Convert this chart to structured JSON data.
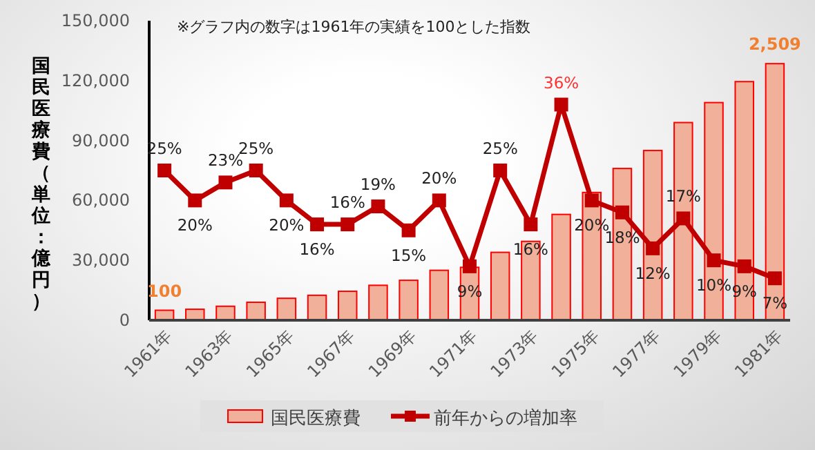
{
  "chart_data": {
    "type": "bar",
    "ylabel": "国民医療費（単位：億円）",
    "categories": [
      "1961年",
      null,
      "1963年",
      null,
      "1965年",
      null,
      "1967年",
      null,
      "1969年",
      null,
      "1971年",
      null,
      "1973年",
      null,
      "1975年",
      null,
      "1977年",
      null,
      "1979年",
      null,
      "1981年"
    ],
    "series": [
      {
        "name": "国民医療費",
        "color": "#f0b09a",
        "values": [
          5000,
          5500,
          7000,
          9000,
          11000,
          12500,
          14500,
          17500,
          20000,
          25000,
          26500,
          34000,
          39500,
          53000,
          64000,
          76000,
          85000,
          99000,
          109000,
          119500,
          128500
        ]
      },
      {
        "name": "前年からの増加率",
        "type": "line",
        "axis": "y2",
        "color": "#c00000",
        "values": [
          25,
          20,
          23,
          25,
          20,
          16,
          16,
          19,
          15,
          20,
          9,
          25,
          16,
          36,
          20,
          18,
          12,
          17,
          10,
          9,
          7
        ],
        "value_labels": [
          "25%",
          "20%",
          "23%",
          "25%",
          "20%",
          "16%",
          "16%",
          "19%",
          "15%",
          "20%",
          "9%",
          "25%",
          "16%",
          "36%",
          "20%",
          "18%",
          "12%",
          "17%",
          "10%",
          "9%",
          "7%"
        ]
      }
    ],
    "ylim": [
      0,
      150000
    ],
    "yticks": [
      0,
      {
        "value": 30000,
        "label": "30,000"
      },
      {
        "value": 60000,
        "label": "60,000"
      },
      {
        "value": 90000,
        "label": "90,000"
      },
      {
        "value": 120000,
        "label": "120,000"
      },
      {
        "value": 150000,
        "label": "150,000"
      }
    ],
    "y2lim": [
      0,
      50
    ],
    "annotations": [
      "※グラフ内の数字は1961年の実績を100とした指数",
      {
        "text": "100",
        "x": "1961年",
        "y": 5000
      },
      {
        "text": "2,509",
        "x": "1981年",
        "y": 128500
      }
    ],
    "legend": "bottom",
    "grid": false,
    "marker": "square",
    "line_style": "solid"
  }
}
